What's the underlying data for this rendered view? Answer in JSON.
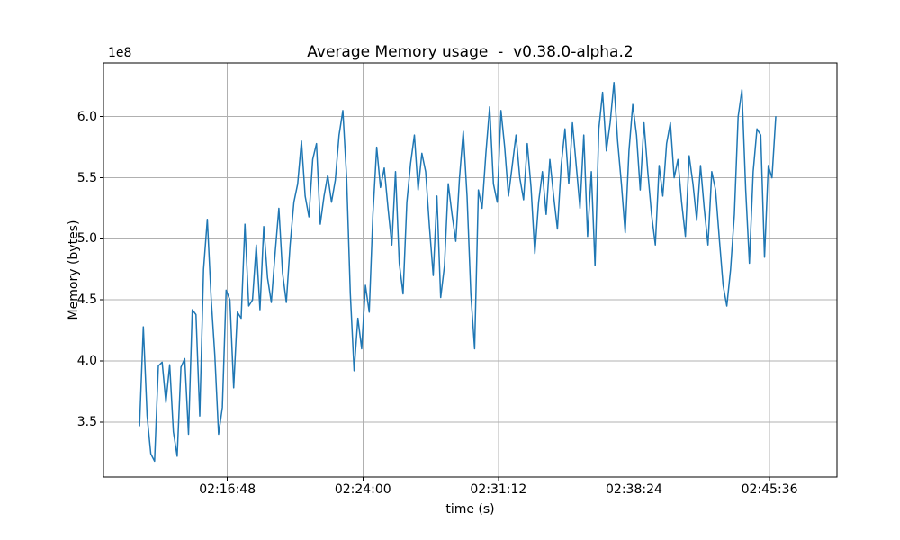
{
  "chart_data": {
    "type": "line",
    "title": "Average Memory usage  -  v0.38.0-alpha.2",
    "xlabel": "time (s)",
    "ylabel": "Memory (bytes)",
    "y_offset_text": "1e8",
    "grid": true,
    "legend_position": "none",
    "line_color": "#1f77b4",
    "grid_color": "#b0b0b0",
    "axis_color": "#000000",
    "background_color": "#ffffff",
    "xlim_seconds": [
      7813,
      10151
    ],
    "ylim_1e8_bytes": [
      3.05,
      6.44
    ],
    "x_ticks": [
      {
        "seconds": 8208,
        "label": "02:16:48"
      },
      {
        "seconds": 8640,
        "label": "02:24:00"
      },
      {
        "seconds": 9072,
        "label": "02:31:12"
      },
      {
        "seconds": 9504,
        "label": "02:38:24"
      },
      {
        "seconds": 9936,
        "label": "02:45:36"
      }
    ],
    "y_ticks": [
      {
        "value_1e8": 3.5,
        "label": "3.5"
      },
      {
        "value_1e8": 4.0,
        "label": "4.0"
      },
      {
        "value_1e8": 4.5,
        "label": "4.5"
      },
      {
        "value_1e8": 5.0,
        "label": "5.0"
      },
      {
        "value_1e8": 5.5,
        "label": "5.5"
      },
      {
        "value_1e8": 6.0,
        "label": "6.0"
      }
    ],
    "series": [
      {
        "name": "average-memory-usage",
        "t_start_seconds": 7928,
        "t_step_seconds": 12,
        "values_1e8_bytes": [
          3.47,
          4.28,
          3.55,
          3.24,
          3.18,
          3.96,
          3.99,
          3.66,
          3.97,
          3.42,
          3.22,
          3.95,
          4.02,
          3.4,
          4.42,
          4.38,
          3.55,
          4.75,
          5.16,
          4.52,
          4.05,
          3.4,
          3.62,
          4.58,
          4.5,
          3.78,
          4.4,
          4.35,
          5.12,
          4.45,
          4.5,
          4.95,
          4.42,
          5.1,
          4.68,
          4.48,
          4.88,
          5.25,
          4.72,
          4.48,
          4.95,
          5.3,
          5.45,
          5.8,
          5.35,
          5.18,
          5.65,
          5.78,
          5.12,
          5.35,
          5.52,
          5.3,
          5.48,
          5.85,
          6.05,
          5.5,
          4.55,
          3.92,
          4.35,
          4.1,
          4.62,
          4.4,
          5.2,
          5.75,
          5.42,
          5.58,
          5.25,
          4.95,
          5.55,
          4.8,
          4.55,
          5.3,
          5.62,
          5.85,
          5.4,
          5.7,
          5.55,
          5.1,
          4.7,
          5.35,
          4.52,
          4.78,
          5.45,
          5.2,
          4.98,
          5.5,
          5.88,
          5.35,
          4.55,
          4.1,
          5.4,
          5.25,
          5.7,
          6.08,
          5.45,
          5.3,
          6.05,
          5.75,
          5.35,
          5.6,
          5.85,
          5.5,
          5.32,
          5.78,
          5.42,
          4.88,
          5.3,
          5.55,
          5.2,
          5.65,
          5.35,
          5.08,
          5.6,
          5.9,
          5.45,
          5.95,
          5.6,
          5.25,
          5.85,
          5.02,
          5.55,
          4.78,
          5.9,
          6.2,
          5.72,
          5.95,
          6.28,
          5.8,
          5.45,
          5.05,
          5.72,
          6.1,
          5.85,
          5.4,
          5.95,
          5.55,
          5.2,
          4.95,
          5.6,
          5.35,
          5.78,
          5.95,
          5.5,
          5.65,
          5.3,
          5.02,
          5.68,
          5.45,
          5.15,
          5.6,
          5.25,
          4.95,
          5.55,
          5.4,
          5.0,
          4.62,
          4.45,
          4.75,
          5.2,
          6.0,
          6.22,
          5.4,
          4.8,
          5.55,
          5.9,
          5.85,
          4.85,
          5.6,
          5.5,
          6.0
        ]
      }
    ]
  }
}
